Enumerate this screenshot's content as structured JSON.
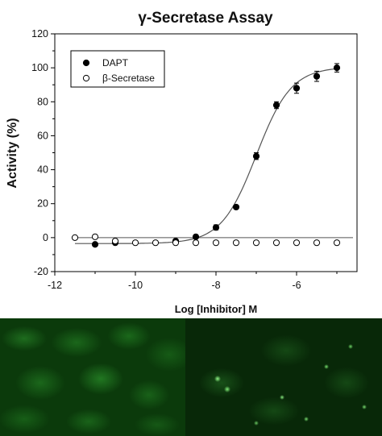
{
  "chart_data": {
    "type": "scatter",
    "title": "γ-Secretase Assay",
    "xlabel": "Log [Inhibitor] M",
    "ylabel": "Activity (%)",
    "xlim": [
      -12,
      -4.5
    ],
    "ylim": [
      -20,
      120
    ],
    "x_ticks": [
      -12,
      -10,
      -8,
      -6
    ],
    "y_ticks": [
      -20,
      0,
      20,
      40,
      60,
      80,
      100,
      120
    ],
    "legend_position": "top-left",
    "series": [
      {
        "name": "DAPT",
        "marker": "filled-circle",
        "color": "#000000",
        "x": [
          -11,
          -10.5,
          -9,
          -8.5,
          -8,
          -7.5,
          -7,
          -6.5,
          -6,
          -5.5,
          -5
        ],
        "y": [
          -4,
          -3,
          -2,
          0.5,
          6,
          18,
          48,
          78,
          88,
          95,
          100
        ],
        "error": [
          1,
          1,
          1,
          1,
          1.5,
          1,
          2,
          2,
          3,
          3,
          2.5
        ],
        "fit_curve": true
      },
      {
        "name": "β-Secretase",
        "marker": "open-circle",
        "color": "#000000",
        "x": [
          -11.5,
          -11,
          -10.5,
          -10,
          -9.5,
          -9,
          -8.5,
          -8,
          -7.5,
          -7,
          -6.5,
          -6,
          -5.5,
          -5
        ],
        "y": [
          0,
          0.5,
          -2,
          -3,
          -3,
          -3,
          -3,
          -3,
          -3,
          -3,
          -3,
          -3,
          -3,
          -3
        ],
        "fit_curve": false
      }
    ],
    "fit": {
      "bottom": -3.5,
      "top": 100.5,
      "logIC50": -7.0,
      "hill": 1.0
    },
    "zero_line": true
  },
  "colors": {
    "axis": "#000000",
    "fit_line": "#555555",
    "micrograph_green": "#2e962e"
  }
}
